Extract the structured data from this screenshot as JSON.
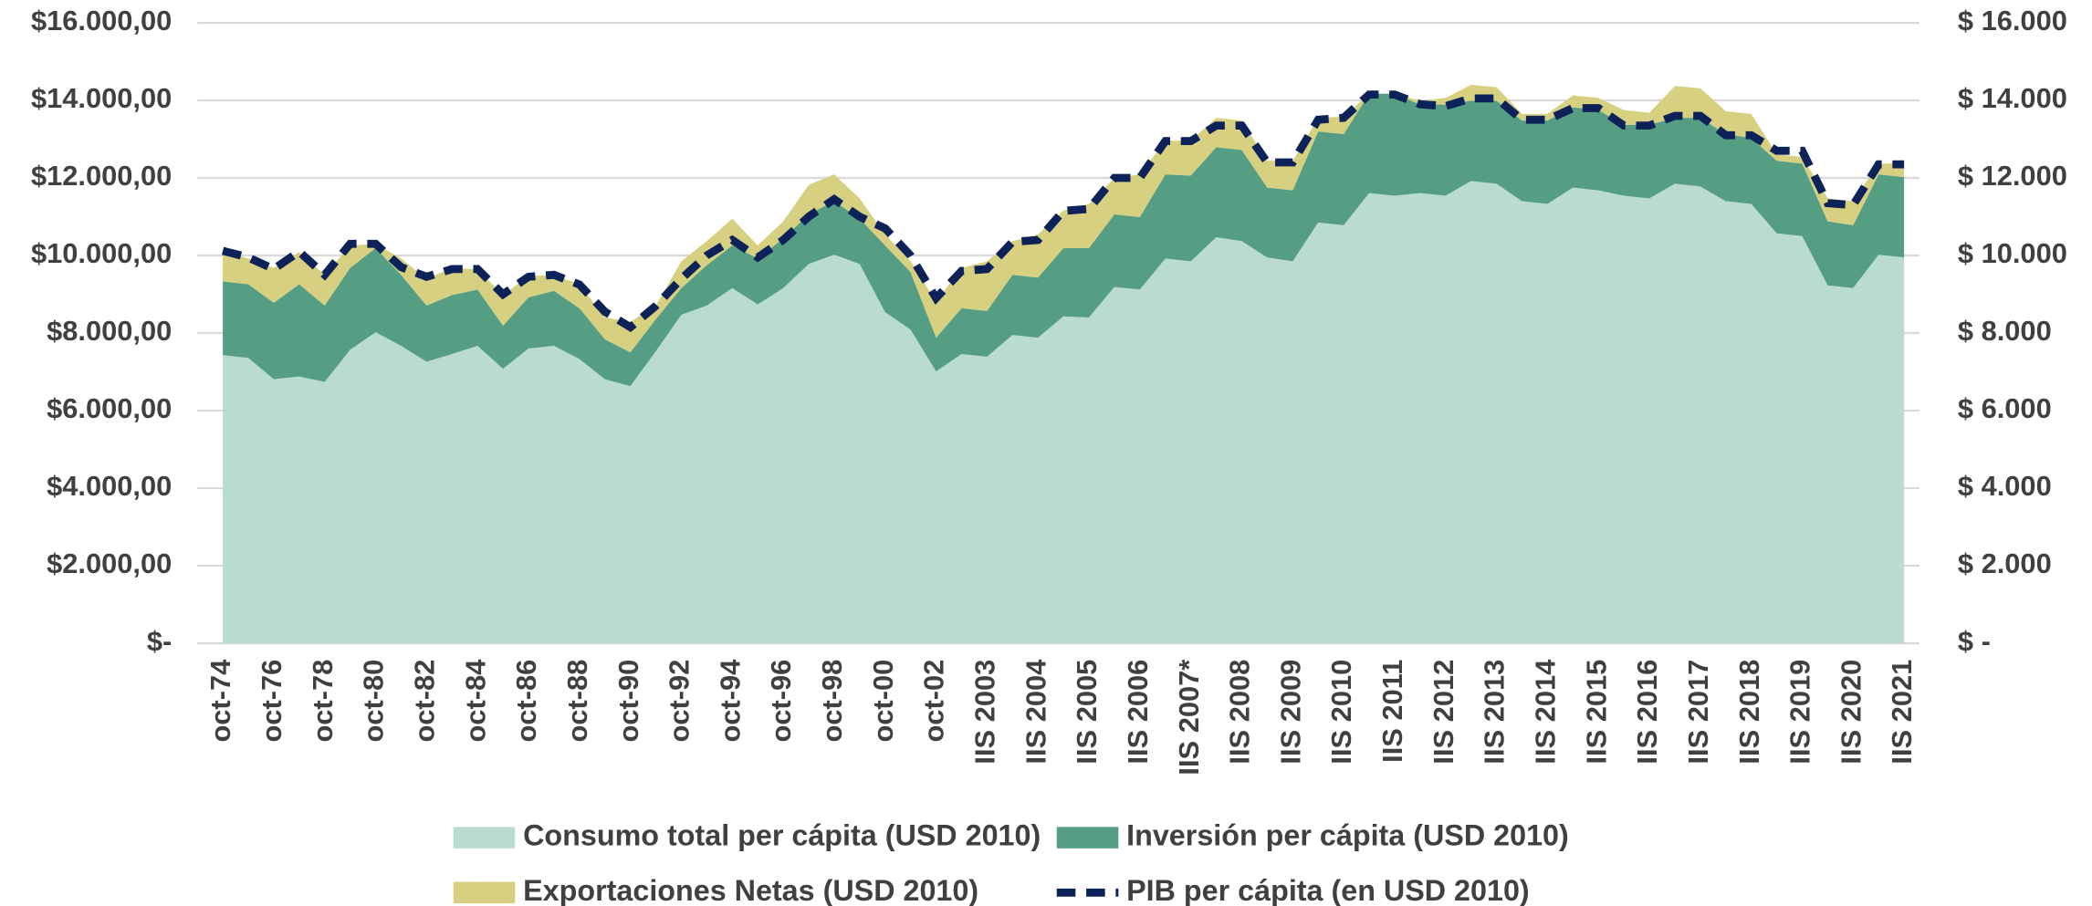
{
  "chart_data": {
    "type": "stacked_area_line",
    "categories": [
      "oct-74",
      null,
      "oct-76",
      null,
      "oct-78",
      null,
      "oct-80",
      null,
      "oct-82",
      null,
      "oct-84",
      null,
      "oct-86",
      null,
      "oct-88",
      null,
      "oct-90",
      null,
      "oct-92",
      null,
      "oct-94",
      null,
      "oct-96",
      null,
      "oct-98",
      null,
      "oct-00",
      null,
      "oct-02",
      null,
      "IIS 2003",
      null,
      "IIS 2004",
      null,
      "IIS 2005",
      null,
      "IIS 2006",
      null,
      "IIS 2007*",
      null,
      "IIS 2008",
      null,
      "IIS 2009",
      null,
      "IIS 2010",
      null,
      "IIS 2011",
      null,
      "IIS 2012",
      null,
      "IIS 2013",
      null,
      "IIS 2014",
      null,
      "IIS 2015",
      null,
      "IIS 2016",
      null,
      "IIS 2017",
      null,
      "IIS 2018",
      null,
      "IIS 2019",
      null,
      "IIS 2020",
      null,
      "IIS 2021"
    ],
    "series": [
      {
        "name": "Consumo total per cápita (USD 2010)",
        "color": "#b9dbd2",
        "values": [
          7430,
          7360,
          6810,
          6880,
          6740,
          7570,
          8020,
          7670,
          7260,
          7460,
          7670,
          7080,
          7600,
          7670,
          7330,
          6810,
          6630,
          7530,
          8470,
          8710,
          9160,
          8740,
          9160,
          9780,
          10020,
          9780,
          8540,
          8090,
          7010,
          7460,
          7390,
          7950,
          7880,
          8430,
          8400,
          9190,
          9120,
          9920,
          9850,
          10470,
          10370,
          9950,
          9850,
          10850,
          10780,
          11610,
          11540,
          11610,
          11540,
          11920,
          11850,
          11400,
          11330,
          11750,
          11680,
          11540,
          11470,
          11850,
          11780,
          11400,
          11330,
          10570,
          10500,
          9230,
          9160,
          10020,
          9950
        ]
      },
      {
        "name": "Inversión per cápita (USD 2010)",
        "color": "#559e84",
        "values": [
          1900,
          1900,
          1970,
          2380,
          1970,
          2110,
          2170,
          1830,
          1450,
          1520,
          1450,
          1110,
          1320,
          1420,
          1310,
          1030,
          870,
          830,
          690,
          1040,
          1100,
          1180,
          1280,
          1280,
          1380,
          1170,
          1720,
          1480,
          870,
          1180,
          1180,
          1550,
          1550,
          1760,
          1790,
          1870,
          1870,
          2170,
          2210,
          2320,
          2350,
          1800,
          1830,
          2350,
          2350,
          2560,
          2630,
          2280,
          2350,
          2070,
          2140,
          2080,
          2150,
          2070,
          2070,
          1830,
          1900,
          1700,
          1770,
          1730,
          1700,
          1870,
          1870,
          1650,
          1620,
          2070,
          2070
        ]
      },
      {
        "name": "Exportaciones Netas (USD 2010)",
        "color": "#d6d080",
        "values": [
          790,
          660,
          900,
          830,
          790,
          580,
          110,
          420,
          690,
          700,
          520,
          790,
          550,
          410,
          620,
          560,
          790,
          350,
          690,
          620,
          690,
          340,
          440,
          760,
          690,
          520,
          280,
          280,
          930,
          1040,
          1280,
          870,
          1110,
          970,
          1140,
          930,
          1100,
          870,
          900,
          760,
          760,
          690,
          760,
          350,
          450,
          0,
          0,
          100,
          170,
          410,
          350,
          170,
          170,
          310,
          310,
          380,
          310,
          820,
          760,
          590,
          620,
          170,
          170,
          590,
          620,
          280,
          350
        ]
      },
      {
        "name": "PIB per cápita (en USD 2010)",
        "color": "#0d2259",
        "axis": "y2",
        "values": [
          10120,
          9950,
          9650,
          10100,
          9500,
          10300,
          10300,
          9700,
          9450,
          9650,
          9650,
          9000,
          9450,
          9500,
          9250,
          8550,
          8150,
          8700,
          9400,
          10000,
          10400,
          9950,
          10400,
          11000,
          11450,
          11000,
          10700,
          10000,
          8900,
          9600,
          9650,
          10350,
          10400,
          11150,
          11200,
          12000,
          12000,
          12950,
          12950,
          13350,
          13350,
          12400,
          12400,
          13500,
          13550,
          14150,
          14150,
          13900,
          13850,
          14050,
          14050,
          13500,
          13500,
          13800,
          13800,
          13350,
          13350,
          13600,
          13600,
          13100,
          13100,
          12700,
          12700,
          11350,
          11300,
          12350,
          12350
        ]
      }
    ],
    "ylim": [
      0,
      16000
    ],
    "yticks": [
      {
        "value": 0,
        "label": "$-"
      },
      {
        "value": 2000,
        "label": "$2.000,00"
      },
      {
        "value": 4000,
        "label": "$4.000,00"
      },
      {
        "value": 6000,
        "label": "$6.000,00"
      },
      {
        "value": 8000,
        "label": "$8.000,00"
      },
      {
        "value": 10000,
        "label": "$10.000,00"
      },
      {
        "value": 12000,
        "label": "$12.000,00"
      },
      {
        "value": 14000,
        "label": "$14.000,00"
      },
      {
        "value": 16000,
        "label": "$16.000,00"
      }
    ],
    "y2lim": [
      0,
      16000
    ],
    "y2ticks": [
      {
        "value": 0,
        "label": "$ -"
      },
      {
        "value": 2000,
        "label": "$ 2.000"
      },
      {
        "value": 4000,
        "label": "$ 4.000"
      },
      {
        "value": 6000,
        "label": "$ 6.000"
      },
      {
        "value": 8000,
        "label": "$ 8.000"
      },
      {
        "value": 10000,
        "label": "$ 10.000"
      },
      {
        "value": 12000,
        "label": "$ 12.000"
      },
      {
        "value": 14000,
        "label": "$ 14.000"
      },
      {
        "value": 16000,
        "label": "$ 16.000"
      }
    ],
    "grid": true
  }
}
